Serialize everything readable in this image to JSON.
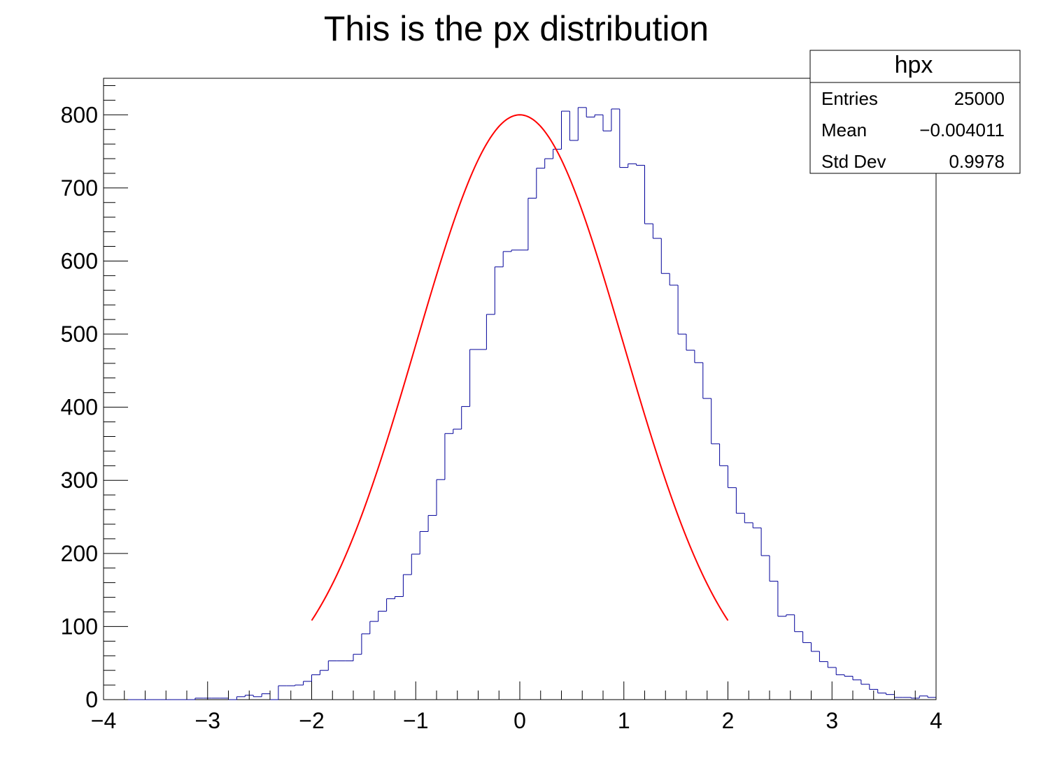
{
  "chart_data": {
    "type": "histogram",
    "title": "This is the px distribution",
    "xlabel": "",
    "ylabel": "",
    "xlim": [
      -4,
      4
    ],
    "ylim": [
      0,
      850
    ],
    "x_tick_labels": [
      "−4",
      "−3",
      "−2",
      "−1",
      "0",
      "1",
      "2",
      "3",
      "4"
    ],
    "y_tick_labels": [
      "0",
      "100",
      "200",
      "300",
      "400",
      "500",
      "600",
      "700",
      "800"
    ],
    "bins": {
      "count": 100,
      "low": -4,
      "high": 4,
      "values": [
        0,
        0,
        0,
        0,
        0,
        0,
        0,
        0,
        0,
        0,
        0,
        2,
        2,
        2,
        2,
        0,
        4,
        6,
        4,
        8,
        0,
        19,
        19,
        20,
        25,
        34,
        40,
        53,
        53,
        53,
        62,
        90,
        107,
        121,
        138,
        141,
        171,
        199,
        230,
        252,
        301,
        364,
        370,
        401,
        479,
        479,
        527,
        592,
        613,
        615,
        615,
        686,
        727,
        740,
        753,
        805,
        765,
        810,
        797,
        800,
        778,
        808,
        728,
        733,
        731,
        651,
        631,
        583,
        567,
        500,
        478,
        461,
        412,
        350,
        320,
        290,
        255,
        242,
        235,
        197,
        162,
        114,
        116,
        93,
        78,
        66,
        52,
        44,
        34,
        32,
        27,
        21,
        14,
        9,
        7,
        3,
        3,
        2,
        5,
        3
      ]
    },
    "fit": {
      "color": "#ff0000",
      "function": "gaus",
      "constant": 800,
      "mean": 0.0,
      "sigma": 1.0,
      "range": [
        -2,
        2
      ]
    },
    "histogram_color": "#000099",
    "stats_box": {
      "name": "hpx",
      "rows": [
        {
          "label": "Entries",
          "value": "25000"
        },
        {
          "label": "Mean",
          "value": "−0.004011"
        },
        {
          "label": "Std Dev",
          "value": "0.9978"
        }
      ]
    }
  }
}
